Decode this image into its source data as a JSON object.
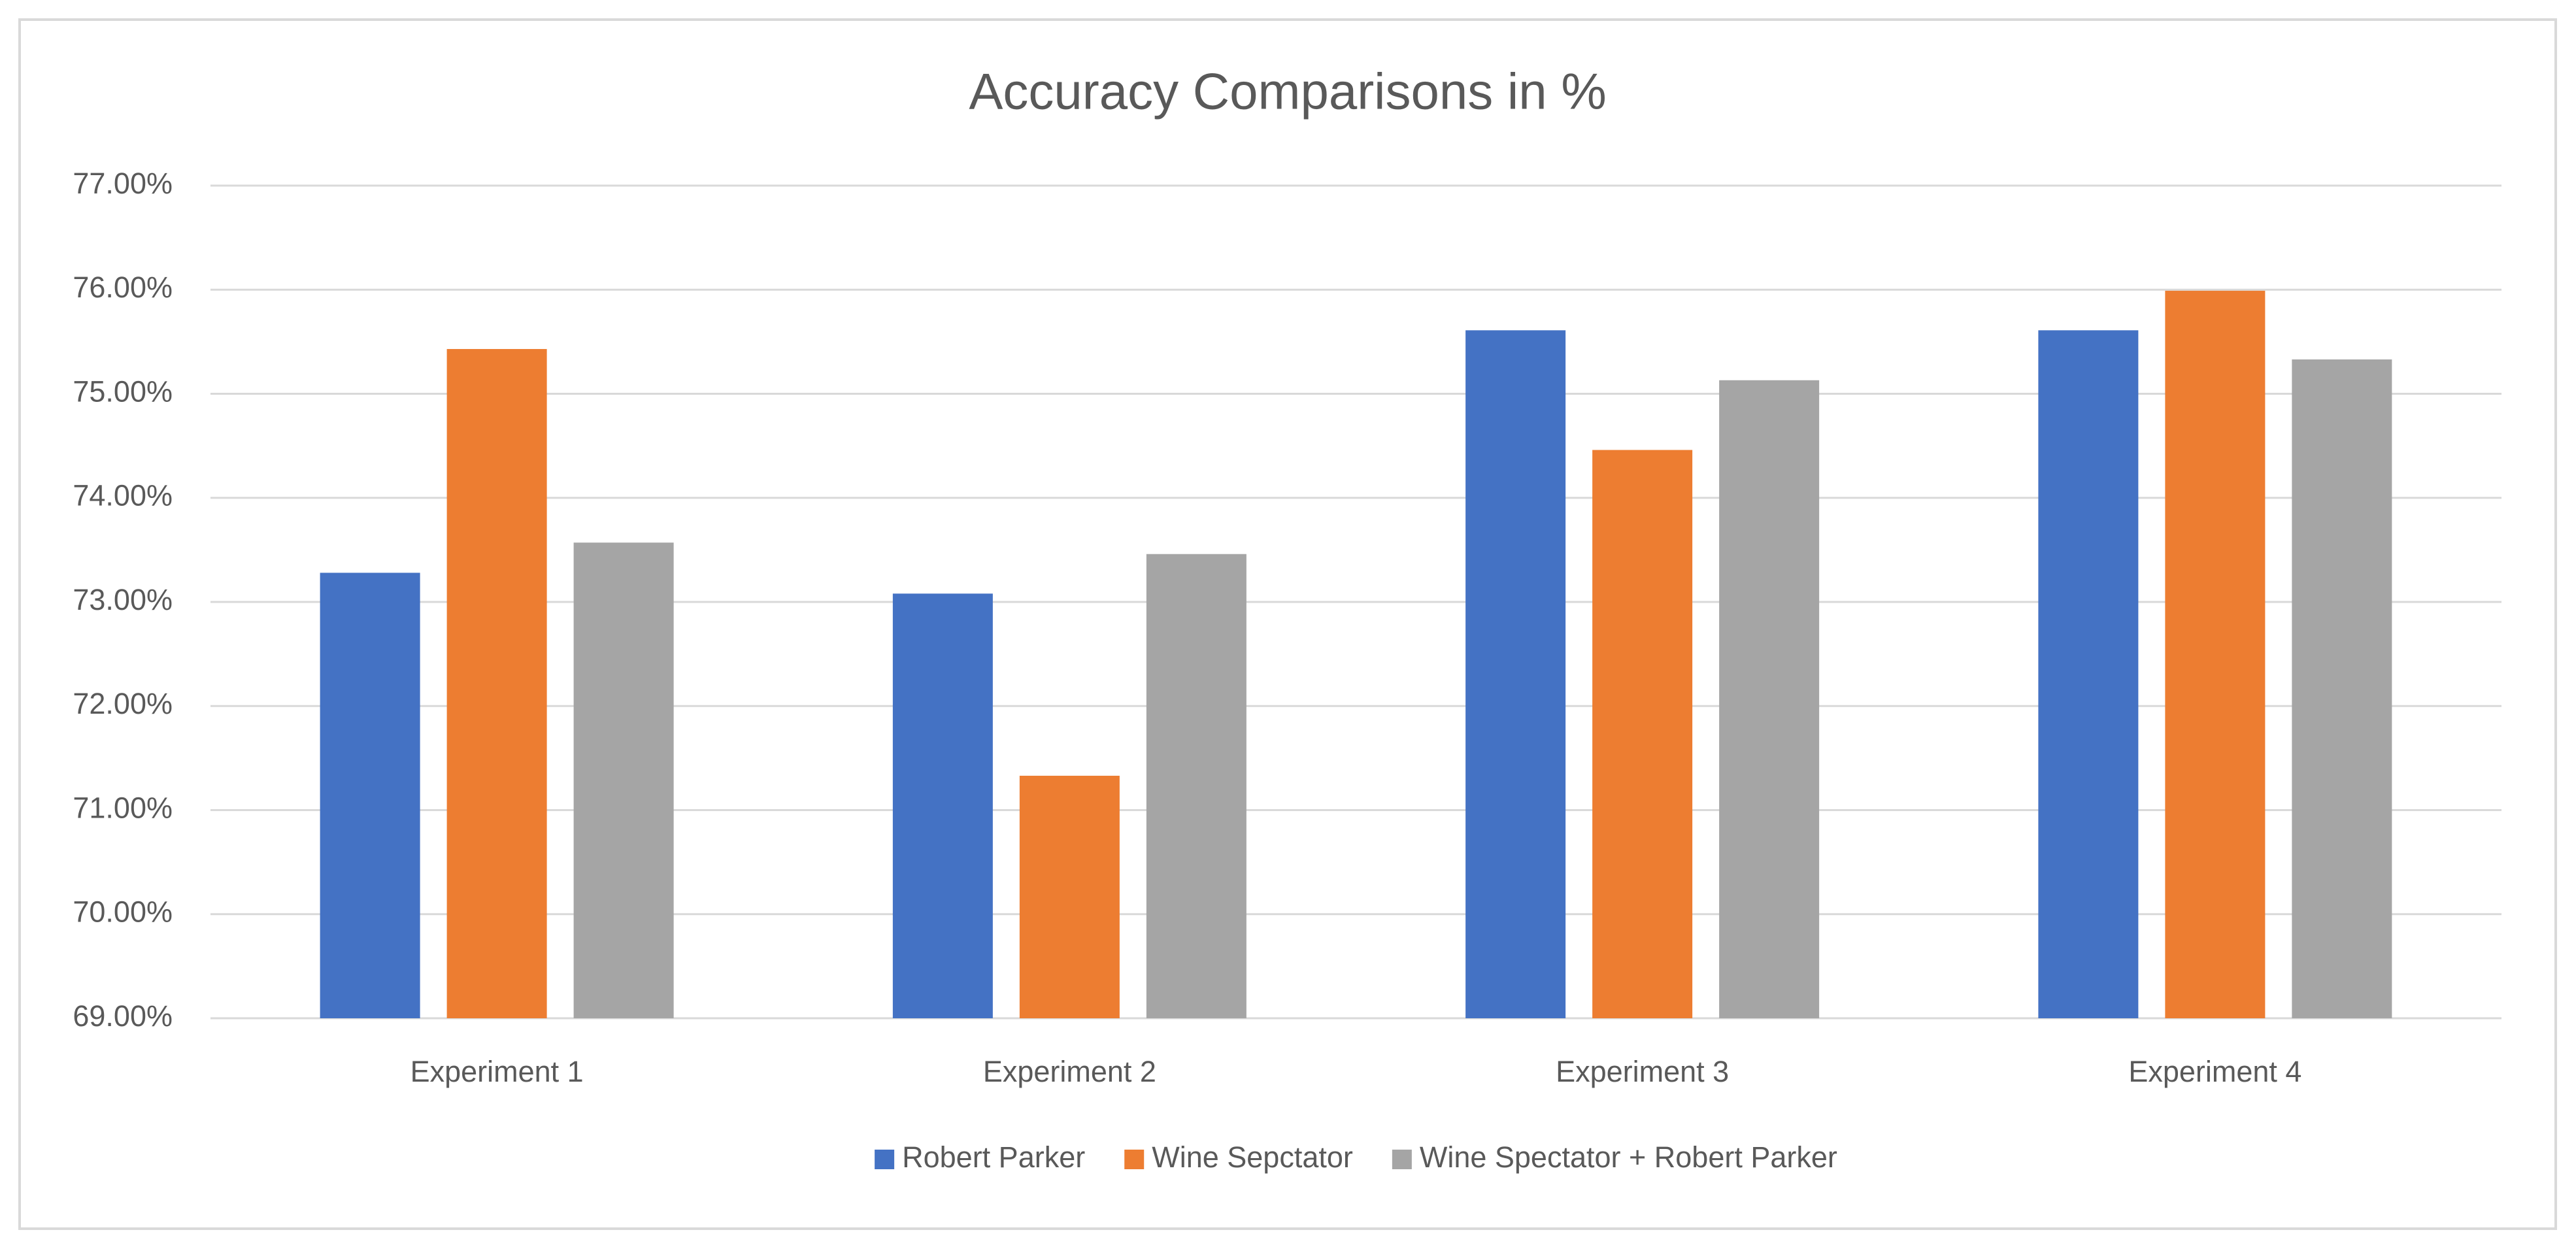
{
  "chart_data": {
    "type": "bar",
    "title": "Accuracy Comparisons in %",
    "categories": [
      "Experiment 1",
      "Experiment 2",
      "Experiment 3",
      "Experiment 4"
    ],
    "series": [
      {
        "name": "Robert Parker",
        "color": "#4472c4",
        "values": [
          73.28,
          73.08,
          75.61,
          75.61
        ]
      },
      {
        "name": "Wine Sepctator",
        "color": "#ed7d31",
        "values": [
          75.43,
          71.33,
          74.46,
          75.99
        ]
      },
      {
        "name": "Wine Spectator + Robert Parker",
        "color": "#a5a5a5",
        "values": [
          73.57,
          73.46,
          75.13,
          75.33
        ]
      }
    ],
    "ylim": [
      69,
      77
    ],
    "yticks": [
      {
        "value": 69,
        "label": "69.00%"
      },
      {
        "value": 70,
        "label": "70.00%"
      },
      {
        "value": 71,
        "label": "71.00%"
      },
      {
        "value": 72,
        "label": "72.00%"
      },
      {
        "value": 73,
        "label": "73.00%"
      },
      {
        "value": 74,
        "label": "74.00%"
      },
      {
        "value": 75,
        "label": "75.00%"
      },
      {
        "value": 76,
        "label": "76.00%"
      },
      {
        "value": 77,
        "label": "77.00%"
      }
    ],
    "grid": true,
    "legend": "bottom"
  }
}
